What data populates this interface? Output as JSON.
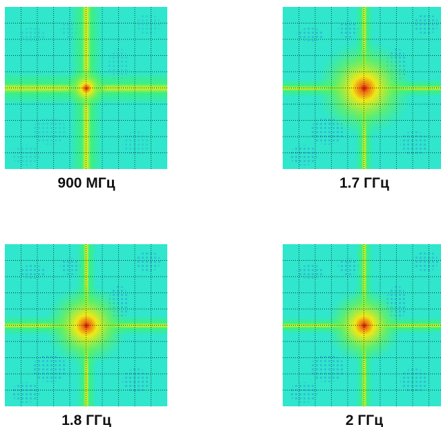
{
  "panels": [
    {
      "caption": "900 МГц"
    },
    {
      "caption": "1.7 ГГц"
    },
    {
      "caption": "1.8 ГГц"
    },
    {
      "caption": "2 ГГц"
    }
  ]
}
